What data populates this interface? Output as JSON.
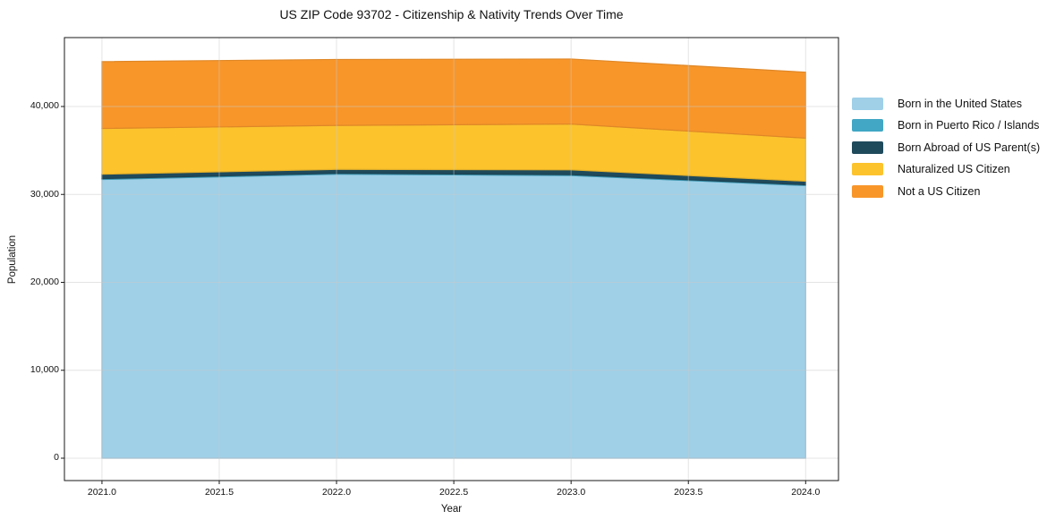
{
  "chart_data": {
    "type": "area",
    "stacked": true,
    "title": "US ZIP Code 93702 - Citizenship & Nativity Trends Over Time",
    "xlabel": "Year",
    "ylabel": "Population",
    "x": [
      2021,
      2022,
      2023,
      2024
    ],
    "xlim": [
      2020.84,
      2024.14
    ],
    "ylim": [
      -2545,
      47837
    ],
    "x_tick_values": [
      2021,
      2021.5,
      2022,
      2022.5,
      2023,
      2023.5,
      2024
    ],
    "x_tick_labels": [
      "2021.0",
      "2021.5",
      "2022.0",
      "2022.5",
      "2023.0",
      "2023.5",
      "2024.0"
    ],
    "y_tick_values": [
      0,
      10000,
      20000,
      30000,
      40000
    ],
    "y_tick_labels": [
      "0",
      "10,000",
      "20,000",
      "30,000",
      "40,000"
    ],
    "grid": true,
    "grid_color": "#c9c9c9",
    "legend_position": "right-outside",
    "series": [
      {
        "name": "Born in the United States",
        "color": "#9fd0e8",
        "values": [
          31700,
          32300,
          32150,
          31000
        ]
      },
      {
        "name": "Born in Puerto Rico / Islands",
        "color": "#41a7c5",
        "values": [
          100,
          100,
          100,
          100
        ]
      },
      {
        "name": "Born Abroad of US Parent(s)",
        "color": "#1f4a5c",
        "values": [
          500,
          450,
          550,
          400
        ]
      },
      {
        "name": "Naturalized US Citizen",
        "color": "#fcc32d",
        "values": [
          5200,
          5000,
          5200,
          4900
        ]
      },
      {
        "name": "Not a US Citizen",
        "color": "#f8962a",
        "values": [
          7600,
          7500,
          7400,
          7500
        ]
      }
    ]
  }
}
